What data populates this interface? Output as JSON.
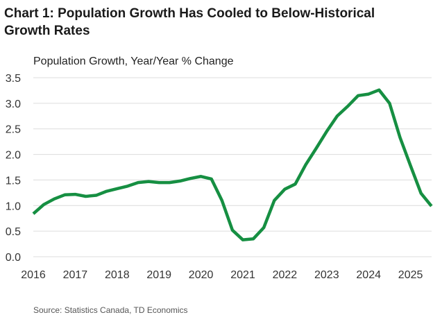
{
  "chart_data": {
    "type": "line",
    "title": "Chart 1: Population Growth Has Cooled to Below-Historical Growth Rates",
    "ylabel": "Population Growth, Year/Year % Change",
    "xlabel": "",
    "x_tick_labels": [
      "2016",
      "2017",
      "2018",
      "2019",
      "2020",
      "2021",
      "2022",
      "2023",
      "2024",
      "2025"
    ],
    "y_tick_labels": [
      "0.0",
      "0.5",
      "1.0",
      "1.5",
      "2.0",
      "2.5",
      "3.0",
      "3.5"
    ],
    "ylim": [
      0,
      3.5
    ],
    "x_frequency": "quarterly",
    "x_start": "2016 Q1",
    "grid": true,
    "line_color": "#168f42",
    "series": [
      {
        "values": [
          0.84,
          1.02,
          1.13,
          1.21,
          1.22,
          1.18,
          1.2,
          1.28,
          1.33,
          1.38,
          1.45,
          1.47,
          1.45,
          1.45,
          1.48,
          1.53,
          1.57,
          1.52,
          1.1,
          0.52,
          0.33,
          0.35,
          0.57,
          1.1,
          1.32,
          1.42,
          1.8,
          2.12,
          2.45,
          2.75,
          2.94,
          3.15,
          3.18,
          3.26,
          3.0,
          2.33,
          1.78,
          1.24,
          0.99
        ]
      }
    ],
    "source": "Source: Statistics Canada, TD Economics"
  }
}
